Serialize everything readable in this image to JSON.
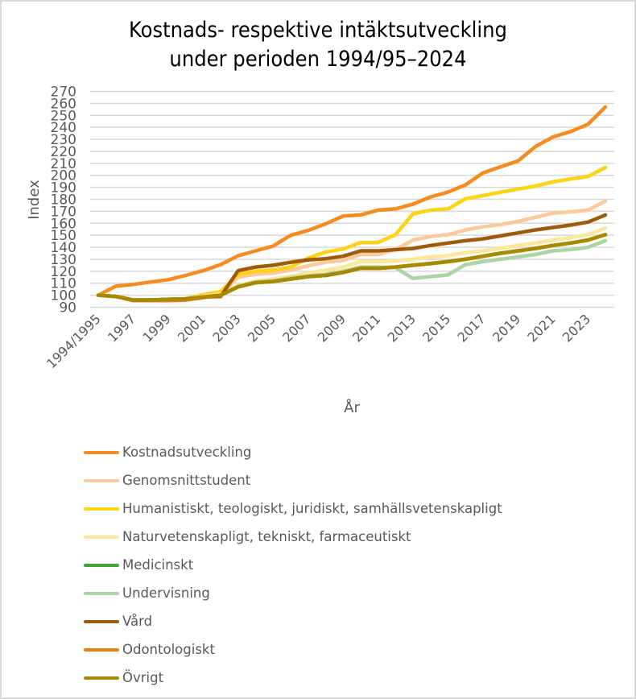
{
  "chart_data": {
    "type": "line",
    "title": "Kostnads- respektive intäktsutveckling under perioden 1994/95–2024",
    "title_lines": [
      "Kostnads- respektive intäktsutveckling",
      "under perioden 1994/95–2024"
    ],
    "xlabel": "År",
    "ylabel": "Index",
    "ylim": [
      90,
      270
    ],
    "ytick_step": 10,
    "yticks": [
      "90",
      "100",
      "110",
      "120",
      "130",
      "140",
      "150",
      "160",
      "170",
      "180",
      "190",
      "200",
      "210",
      "220",
      "230",
      "240",
      "250",
      "260",
      "270"
    ],
    "grid": true,
    "legend_position": "bottom",
    "categories": [
      "1994/1995",
      "1996",
      "1997",
      "1998",
      "1999",
      "2000",
      "2001",
      "2002",
      "2003",
      "2004",
      "2005",
      "2006",
      "2007",
      "2008",
      "2009",
      "2010",
      "2011",
      "2012",
      "2013",
      "2014",
      "2015",
      "2016",
      "2017",
      "2018",
      "2019",
      "2020",
      "2021",
      "2022",
      "2023",
      "2024"
    ],
    "xtick_labels_shown": [
      "1994/1995",
      "1997",
      "1999",
      "2001",
      "2003",
      "2005",
      "2007",
      "2009",
      "2011",
      "2013",
      "2015",
      "2017",
      "2019",
      "2021",
      "2023"
    ],
    "series": [
      {
        "name": "Kostnadsutveckling",
        "color": "#f68c1f",
        "values": [
          100,
          107.5,
          109,
          111,
          113,
          116.5,
          120.5,
          125.5,
          133,
          137,
          141,
          150,
          154,
          159.5,
          166,
          167,
          171,
          172,
          176,
          182,
          186,
          192,
          202,
          207,
          212,
          224,
          232,
          236.5,
          242.5,
          257
        ]
      },
      {
        "name": "Genomsnittstudent",
        "color": "#fbc99a",
        "values": [
          100,
          99,
          96,
          96,
          96.5,
          97,
          99,
          101,
          115,
          117.5,
          118.5,
          121,
          124.5,
          127.5,
          129,
          134,
          134,
          138,
          146,
          149,
          150.5,
          154.5,
          157,
          159,
          161.5,
          165,
          168.5,
          169.5,
          171,
          178.5
        ]
      },
      {
        "name": "Humanistiskt, teologiskt, juridiskt, samhällsvetenskapligt",
        "color": "#fdd313",
        "values": [
          100,
          99,
          96,
          96,
          96.5,
          97,
          100.5,
          103,
          117.5,
          120,
          121,
          123.5,
          131,
          136,
          138.5,
          144,
          144,
          150.5,
          168,
          171,
          172,
          180.5,
          183,
          186,
          188.5,
          191,
          194.5,
          197,
          199,
          206.5
        ]
      },
      {
        "name": "Naturvetenskapligt, tekniskt, farmaceutiskt",
        "color": "#fee79a",
        "values": [
          100,
          99,
          96,
          96,
          96.5,
          97,
          99,
          101,
          108,
          112,
          113.5,
          116,
          118.5,
          121,
          123.5,
          128,
          128,
          128.5,
          130,
          132,
          133,
          135.5,
          137,
          139,
          141.5,
          143.5,
          146,
          148,
          150.5,
          156
        ]
      },
      {
        "name": "Medicinskt",
        "color": "#3fa535",
        "values": [
          100,
          99,
          96,
          96,
          96.5,
          97,
          98.5,
          100,
          107,
          110.5,
          111.5,
          113.5,
          115.5,
          116.5,
          119,
          122.5,
          122.5,
          123.5,
          125,
          126.5,
          128,
          130,
          132.5,
          135,
          137,
          139,
          141.5,
          143.5,
          146,
          150.5
        ]
      },
      {
        "name": "Undervisning",
        "color": "#a9d6a3",
        "values": [
          100,
          99,
          96,
          96,
          96.5,
          97,
          98.5,
          100,
          107.5,
          111,
          112,
          114.5,
          116,
          117.5,
          120,
          123.5,
          123.5,
          123,
          114,
          115.5,
          117,
          125.5,
          128,
          130,
          132,
          134,
          137,
          138,
          140,
          145.5
        ]
      },
      {
        "name": "Vård",
        "color": "#a05a0a",
        "values": [
          100,
          99,
          96,
          96,
          96.5,
          97,
          98.5,
          99,
          120.5,
          123.5,
          125,
          127.5,
          129.5,
          130.5,
          132.5,
          137,
          137,
          138,
          139,
          141.5,
          143.5,
          145.5,
          147,
          149.5,
          152,
          154.5,
          156.5,
          158.5,
          161,
          167
        ]
      },
      {
        "name": "Odontologiskt",
        "color": "#ee7d10",
        "values": [
          100,
          99,
          95.5,
          95.5,
          95.5,
          96,
          98,
          100,
          107,
          110.5,
          111.5,
          113.5,
          115.5,
          116.5,
          119,
          122.5,
          122.5,
          123.5,
          125,
          126.5,
          128,
          130,
          132.5,
          135,
          137,
          139,
          141.5,
          143.5,
          146,
          150.5
        ]
      },
      {
        "name": "Övrigt",
        "color": "#a88a00",
        "values": [
          100,
          99,
          96,
          96,
          96.5,
          97,
          98.5,
          100,
          107,
          110.5,
          111.5,
          113.5,
          115.5,
          116.5,
          119,
          122.5,
          122.5,
          123.5,
          125,
          126.5,
          128,
          130,
          132.5,
          135,
          137,
          139,
          141.5,
          143.5,
          146,
          150.5
        ]
      }
    ]
  }
}
